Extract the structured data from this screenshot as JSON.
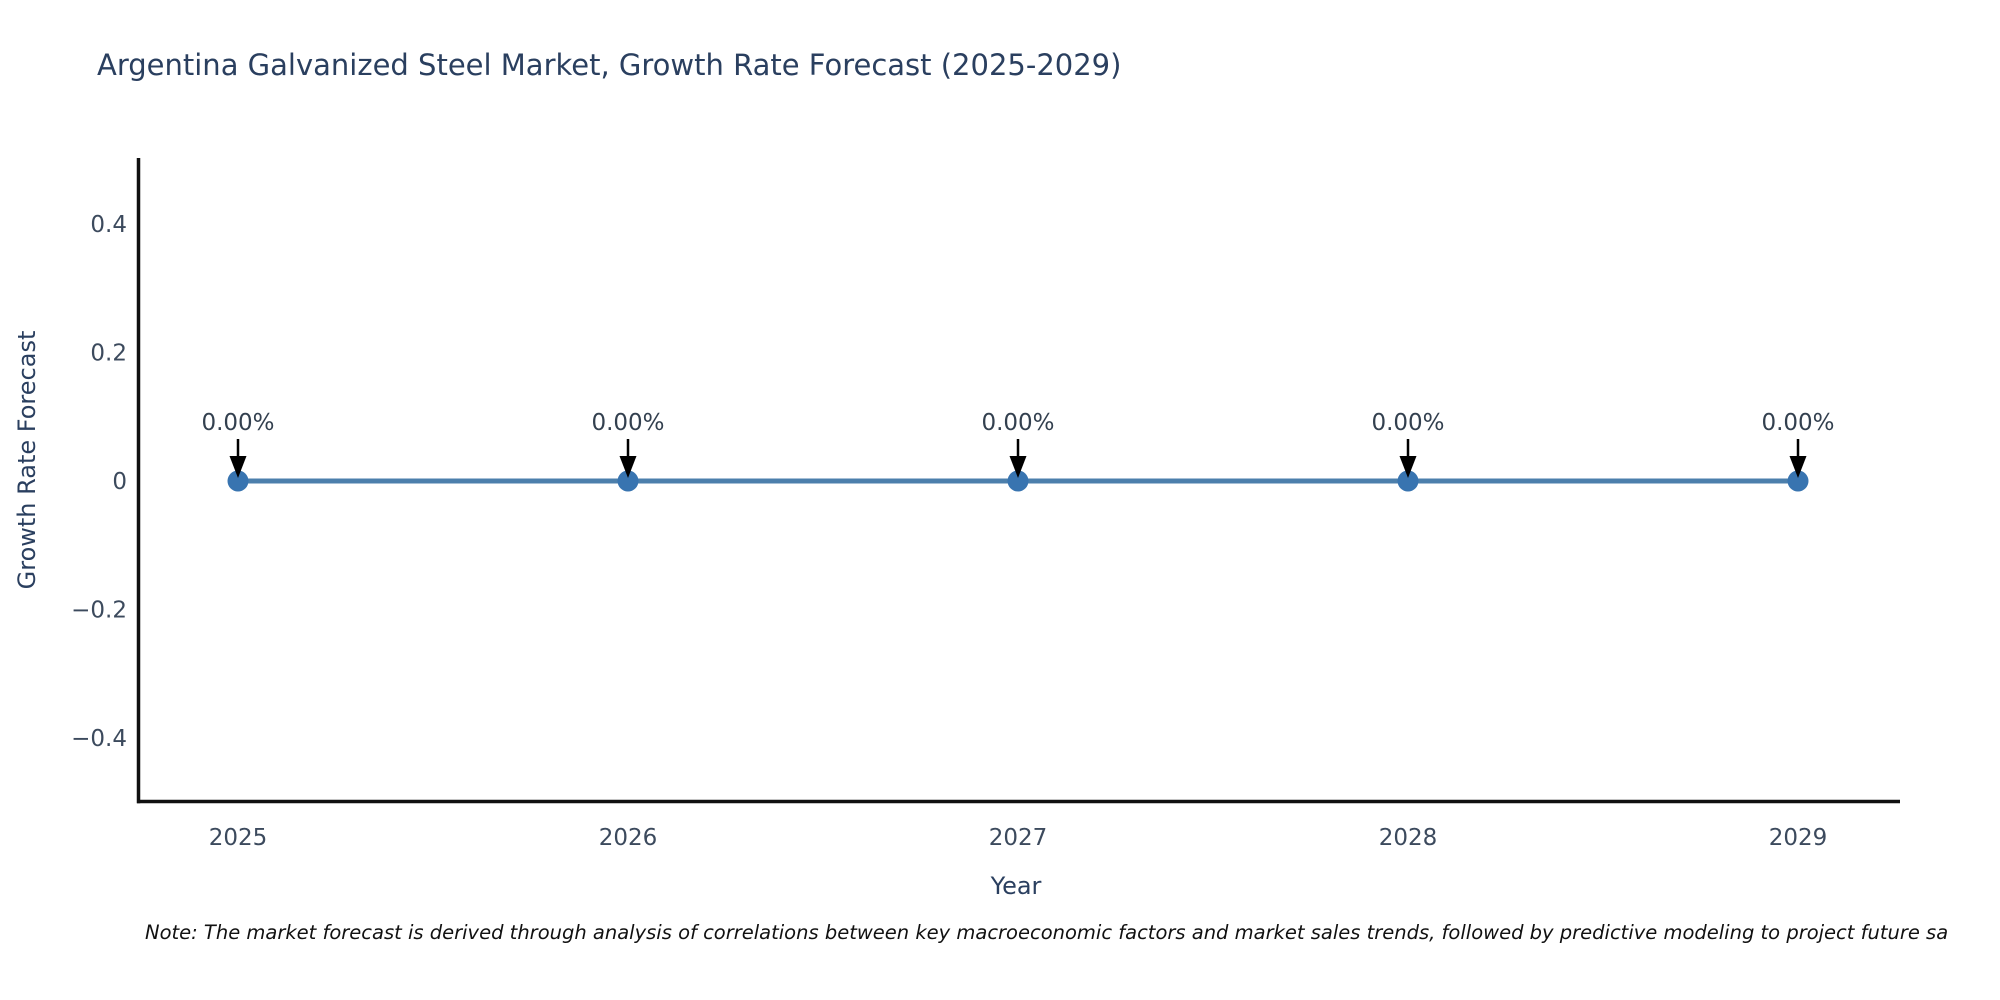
{
  "chart_data": {
    "type": "line",
    "title": "Argentina Galvanized Steel Market, Growth Rate Forecast (2025-2029)",
    "xlabel": "Year",
    "ylabel": "Growth Rate Forecast",
    "categories": [
      "2025",
      "2026",
      "2027",
      "2028",
      "2029"
    ],
    "series": [
      {
        "name": "Growth Rate Forecast",
        "values": [
          0,
          0,
          0,
          0,
          0
        ]
      }
    ],
    "point_labels": [
      "0.00%",
      "0.00%",
      "0.00%",
      "0.00%",
      "0.00%"
    ],
    "ylim": [
      -0.5,
      0.5
    ],
    "y_ticks": [
      0.4,
      0.2,
      0,
      -0.2,
      -0.4
    ],
    "y_tick_labels": [
      "0.4",
      "0.2",
      "0",
      "−0.2",
      "−0.4"
    ],
    "grid": false,
    "legend": "none",
    "annotation_style": "down-arrow-to-point"
  },
  "note": {
    "text": "Note: The market forecast is derived through analysis of correlations between key macroeconomic factors and market sales trends, followed by predictive modeling to project future sa"
  },
  "colors": {
    "background": "#ffffff",
    "line": "#4c7fac",
    "marker": "#3874b0",
    "axis_line": "#111111",
    "title_text": "#2a3f5f",
    "tick_text": "#3c4a5d",
    "annotation_text": "#33404f",
    "arrow": "#000000",
    "note_text": "#111111"
  }
}
